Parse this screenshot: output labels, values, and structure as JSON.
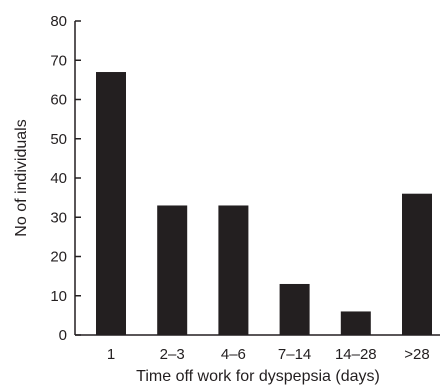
{
  "chart_data": {
    "type": "bar",
    "title": "",
    "xlabel": "Time off work for dyspepsia (days)",
    "ylabel": "No of individuals",
    "categories": [
      "1",
      "2–3",
      "4–6",
      "7–14",
      "14–28",
      ">28"
    ],
    "values": [
      67,
      33,
      33,
      13,
      6,
      36
    ],
    "ylim": [
      0,
      80
    ],
    "yticks": [
      "0",
      "10",
      "20",
      "30",
      "40",
      "50",
      "60",
      "70",
      "80"
    ],
    "grid": false,
    "legend": "none",
    "bar_color": "#231f20",
    "axis_color": "#231f20"
  }
}
